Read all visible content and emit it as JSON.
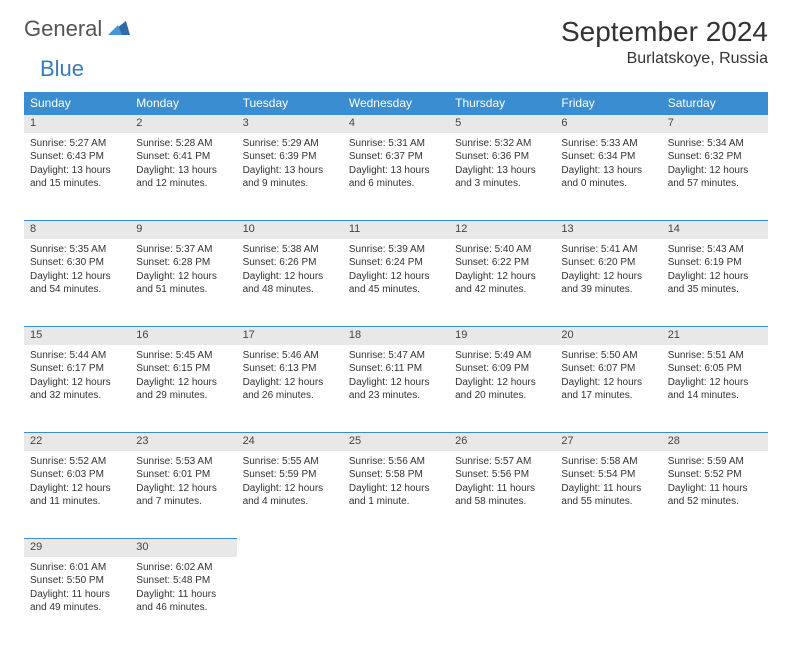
{
  "logo": {
    "word1": "General",
    "word2": "Blue"
  },
  "title": "September 2024",
  "location": "Burlatskoye, Russia",
  "colors": {
    "header_bg": "#3a8dd0",
    "header_text": "#ffffff",
    "daynum_bg": "#e8e8e8",
    "border": "#3a8dd0",
    "text": "#333333",
    "logo_gray": "#555555",
    "logo_blue": "#3a7bbf"
  },
  "weekdays": [
    "Sunday",
    "Monday",
    "Tuesday",
    "Wednesday",
    "Thursday",
    "Friday",
    "Saturday"
  ],
  "weeks": [
    [
      {
        "n": "1",
        "sr": "Sunrise: 5:27 AM",
        "ss": "Sunset: 6:43 PM",
        "d1": "Daylight: 13 hours",
        "d2": "and 15 minutes."
      },
      {
        "n": "2",
        "sr": "Sunrise: 5:28 AM",
        "ss": "Sunset: 6:41 PM",
        "d1": "Daylight: 13 hours",
        "d2": "and 12 minutes."
      },
      {
        "n": "3",
        "sr": "Sunrise: 5:29 AM",
        "ss": "Sunset: 6:39 PM",
        "d1": "Daylight: 13 hours",
        "d2": "and 9 minutes."
      },
      {
        "n": "4",
        "sr": "Sunrise: 5:31 AM",
        "ss": "Sunset: 6:37 PM",
        "d1": "Daylight: 13 hours",
        "d2": "and 6 minutes."
      },
      {
        "n": "5",
        "sr": "Sunrise: 5:32 AM",
        "ss": "Sunset: 6:36 PM",
        "d1": "Daylight: 13 hours",
        "d2": "and 3 minutes."
      },
      {
        "n": "6",
        "sr": "Sunrise: 5:33 AM",
        "ss": "Sunset: 6:34 PM",
        "d1": "Daylight: 13 hours",
        "d2": "and 0 minutes."
      },
      {
        "n": "7",
        "sr": "Sunrise: 5:34 AM",
        "ss": "Sunset: 6:32 PM",
        "d1": "Daylight: 12 hours",
        "d2": "and 57 minutes."
      }
    ],
    [
      {
        "n": "8",
        "sr": "Sunrise: 5:35 AM",
        "ss": "Sunset: 6:30 PM",
        "d1": "Daylight: 12 hours",
        "d2": "and 54 minutes."
      },
      {
        "n": "9",
        "sr": "Sunrise: 5:37 AM",
        "ss": "Sunset: 6:28 PM",
        "d1": "Daylight: 12 hours",
        "d2": "and 51 minutes."
      },
      {
        "n": "10",
        "sr": "Sunrise: 5:38 AM",
        "ss": "Sunset: 6:26 PM",
        "d1": "Daylight: 12 hours",
        "d2": "and 48 minutes."
      },
      {
        "n": "11",
        "sr": "Sunrise: 5:39 AM",
        "ss": "Sunset: 6:24 PM",
        "d1": "Daylight: 12 hours",
        "d2": "and 45 minutes."
      },
      {
        "n": "12",
        "sr": "Sunrise: 5:40 AM",
        "ss": "Sunset: 6:22 PM",
        "d1": "Daylight: 12 hours",
        "d2": "and 42 minutes."
      },
      {
        "n": "13",
        "sr": "Sunrise: 5:41 AM",
        "ss": "Sunset: 6:20 PM",
        "d1": "Daylight: 12 hours",
        "d2": "and 39 minutes."
      },
      {
        "n": "14",
        "sr": "Sunrise: 5:43 AM",
        "ss": "Sunset: 6:19 PM",
        "d1": "Daylight: 12 hours",
        "d2": "and 35 minutes."
      }
    ],
    [
      {
        "n": "15",
        "sr": "Sunrise: 5:44 AM",
        "ss": "Sunset: 6:17 PM",
        "d1": "Daylight: 12 hours",
        "d2": "and 32 minutes."
      },
      {
        "n": "16",
        "sr": "Sunrise: 5:45 AM",
        "ss": "Sunset: 6:15 PM",
        "d1": "Daylight: 12 hours",
        "d2": "and 29 minutes."
      },
      {
        "n": "17",
        "sr": "Sunrise: 5:46 AM",
        "ss": "Sunset: 6:13 PM",
        "d1": "Daylight: 12 hours",
        "d2": "and 26 minutes."
      },
      {
        "n": "18",
        "sr": "Sunrise: 5:47 AM",
        "ss": "Sunset: 6:11 PM",
        "d1": "Daylight: 12 hours",
        "d2": "and 23 minutes."
      },
      {
        "n": "19",
        "sr": "Sunrise: 5:49 AM",
        "ss": "Sunset: 6:09 PM",
        "d1": "Daylight: 12 hours",
        "d2": "and 20 minutes."
      },
      {
        "n": "20",
        "sr": "Sunrise: 5:50 AM",
        "ss": "Sunset: 6:07 PM",
        "d1": "Daylight: 12 hours",
        "d2": "and 17 minutes."
      },
      {
        "n": "21",
        "sr": "Sunrise: 5:51 AM",
        "ss": "Sunset: 6:05 PM",
        "d1": "Daylight: 12 hours",
        "d2": "and 14 minutes."
      }
    ],
    [
      {
        "n": "22",
        "sr": "Sunrise: 5:52 AM",
        "ss": "Sunset: 6:03 PM",
        "d1": "Daylight: 12 hours",
        "d2": "and 11 minutes."
      },
      {
        "n": "23",
        "sr": "Sunrise: 5:53 AM",
        "ss": "Sunset: 6:01 PM",
        "d1": "Daylight: 12 hours",
        "d2": "and 7 minutes."
      },
      {
        "n": "24",
        "sr": "Sunrise: 5:55 AM",
        "ss": "Sunset: 5:59 PM",
        "d1": "Daylight: 12 hours",
        "d2": "and 4 minutes."
      },
      {
        "n": "25",
        "sr": "Sunrise: 5:56 AM",
        "ss": "Sunset: 5:58 PM",
        "d1": "Daylight: 12 hours",
        "d2": "and 1 minute."
      },
      {
        "n": "26",
        "sr": "Sunrise: 5:57 AM",
        "ss": "Sunset: 5:56 PM",
        "d1": "Daylight: 11 hours",
        "d2": "and 58 minutes."
      },
      {
        "n": "27",
        "sr": "Sunrise: 5:58 AM",
        "ss": "Sunset: 5:54 PM",
        "d1": "Daylight: 11 hours",
        "d2": "and 55 minutes."
      },
      {
        "n": "28",
        "sr": "Sunrise: 5:59 AM",
        "ss": "Sunset: 5:52 PM",
        "d1": "Daylight: 11 hours",
        "d2": "and 52 minutes."
      }
    ],
    [
      {
        "n": "29",
        "sr": "Sunrise: 6:01 AM",
        "ss": "Sunset: 5:50 PM",
        "d1": "Daylight: 11 hours",
        "d2": "and 49 minutes."
      },
      {
        "n": "30",
        "sr": "Sunrise: 6:02 AM",
        "ss": "Sunset: 5:48 PM",
        "d1": "Daylight: 11 hours",
        "d2": "and 46 minutes."
      },
      null,
      null,
      null,
      null,
      null
    ]
  ]
}
